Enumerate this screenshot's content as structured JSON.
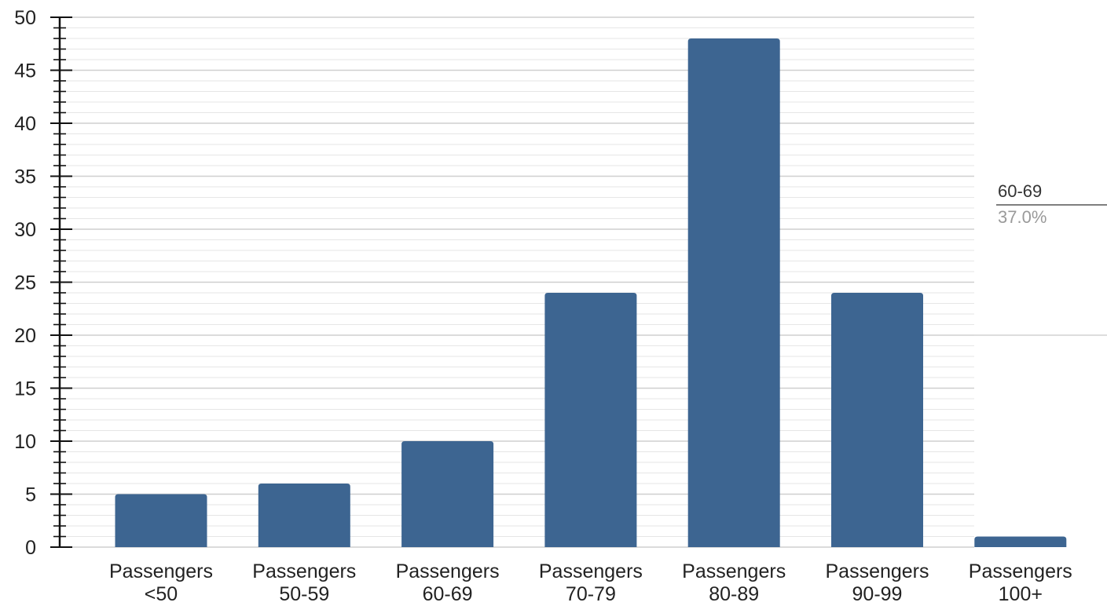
{
  "chart_data": {
    "type": "bar",
    "categories": [
      [
        "Passengers",
        "<50"
      ],
      [
        "Passengers",
        "50-59"
      ],
      [
        "Passengers",
        "60-69"
      ],
      [
        "Passengers",
        "70-79"
      ],
      [
        "Passengers",
        "80-89"
      ],
      [
        "Passengers",
        "90-99"
      ],
      [
        "Passengers",
        "100+"
      ]
    ],
    "values": [
      5,
      6,
      10,
      24,
      48,
      24,
      1
    ],
    "y_ticks": [
      "0",
      "5",
      "10",
      "15",
      "20",
      "25",
      "30",
      "35",
      "40",
      "45",
      "50"
    ],
    "ylim": [
      0,
      50
    ],
    "grid": true,
    "bar_color": "#3d6591",
    "grid_color": "#d6d6d6",
    "callout": {
      "label": "60-69",
      "value": "37.0%"
    }
  }
}
